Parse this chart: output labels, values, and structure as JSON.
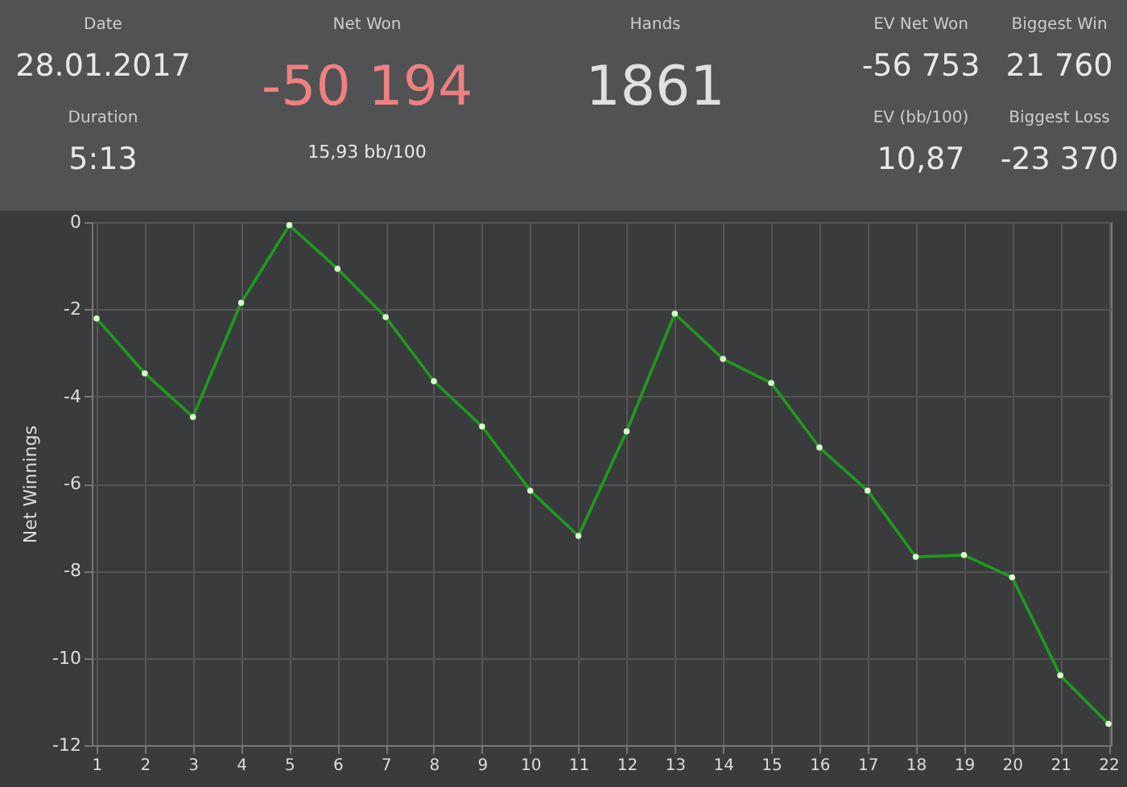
{
  "chart_data": [
    {
      "type": "other",
      "annotations": [
        "Date",
        "28.01.2017",
        "Duration",
        "5:13",
        "Net Won",
        "-50 194",
        "15,93 bb/100",
        "Hands",
        "1861",
        "EV Net Won",
        "-56 753",
        "Biggest Win",
        "21 760",
        "EV (bb/100)",
        "10,87",
        "Biggest Loss",
        "-23 370"
      ]
    },
    {
      "type": "line",
      "ylabel": "Net Winnings",
      "x": [
        1,
        2,
        3,
        4,
        5,
        6,
        7,
        8,
        9,
        10,
        11,
        12,
        13,
        14,
        15,
        16,
        17,
        18,
        19,
        20,
        21,
        22
      ],
      "series": [
        {
          "color": "#1f9a1f",
          "values": [
            -2.21,
            -3.47,
            -4.47,
            -1.85,
            -0.07,
            -1.07,
            -2.18,
            -3.65,
            -4.69,
            -6.16,
            -7.2,
            -4.8,
            -2.1,
            -3.14,
            -3.69,
            -5.17,
            -6.16,
            -7.68,
            -7.64,
            -8.15,
            -10.4,
            -11.51
          ]
        }
      ],
      "xlim": [
        0.9,
        22.05
      ],
      "xticks": [
        1,
        2,
        3,
        4,
        5,
        6,
        7,
        8,
        9,
        10,
        11,
        12,
        13,
        14,
        15,
        16,
        17,
        18,
        19,
        20,
        21,
        22
      ],
      "ylim": [
        -12,
        0
      ],
      "yticks": [
        -12,
        -10,
        -8,
        -6,
        -4,
        -2,
        0
      ],
      "grid": true,
      "marker": "circle",
      "line_style": "solid"
    }
  ]
}
